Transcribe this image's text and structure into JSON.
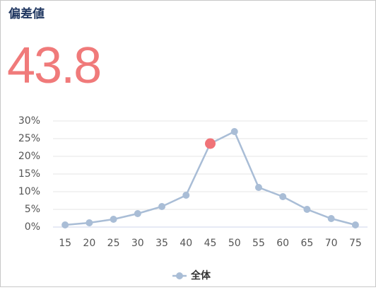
{
  "header": {
    "title": "偏差値",
    "score": 43.8
  },
  "chart_data": {
    "type": "line",
    "categories": [
      "15",
      "20",
      "25",
      "30",
      "35",
      "40",
      "45",
      "50",
      "55",
      "60",
      "65",
      "70",
      "75"
    ],
    "series": [
      {
        "name": "全体",
        "color": "#a9bdd6",
        "values": [
          0.6,
          1.2,
          2.2,
          3.8,
          5.8,
          9,
          23.6,
          27,
          11.2,
          8.6,
          5,
          2.4,
          0.6
        ]
      }
    ],
    "highlight_index": 6,
    "highlight_color": "#f07378",
    "ylim": [
      0,
      30
    ],
    "yticks": [
      {
        "value": 0,
        "label": "0%"
      },
      {
        "value": 5,
        "label": "5%"
      },
      {
        "value": 10,
        "label": "10%"
      },
      {
        "value": 15,
        "label": "15%"
      },
      {
        "value": 20,
        "label": "20%"
      },
      {
        "value": 25,
        "label": "25%"
      },
      {
        "value": 30,
        "label": "30%"
      }
    ],
    "grid": true,
    "legend": "bottom"
  }
}
